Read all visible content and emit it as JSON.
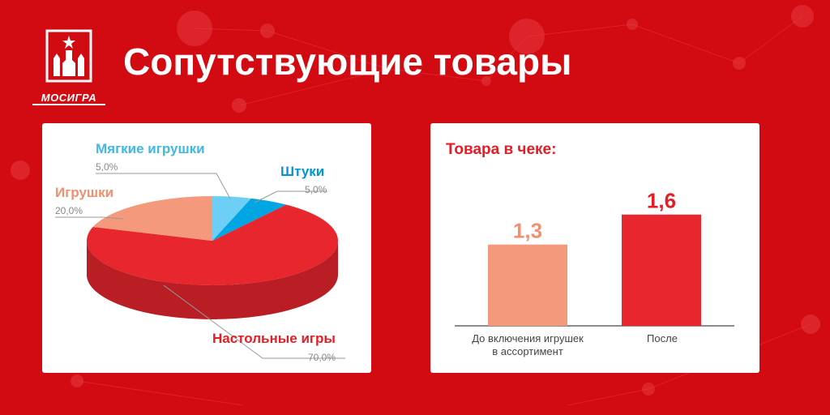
{
  "header": {
    "title": "Сопутствующие товары",
    "logo_text": "МОСИГРА"
  },
  "colors": {
    "background": "#d20a11",
    "accent": "#e31e24",
    "light_blue": "#6ecff6",
    "blue": "#00a5e3",
    "salmon": "#f4997b",
    "red": "#e8262e"
  },
  "chart_data": [
    {
      "type": "pie",
      "title": "",
      "slices": [
        {
          "label": "Мягкие игрушки",
          "value": 5.0,
          "value_label": "5,0%",
          "color": "#6ecff6"
        },
        {
          "label": "Штуки",
          "value": 5.0,
          "value_label": "5,0%",
          "color": "#00a5e3"
        },
        {
          "label": "Настольные игры",
          "value": 70.0,
          "value_label": "70,0%",
          "color": "#e8262e"
        },
        {
          "label": "Игрушки",
          "value": 20.0,
          "value_label": "20,0%",
          "color": "#f4997b"
        }
      ]
    },
    {
      "type": "bar",
      "title": "Товара в чеке:",
      "categories": [
        "До включения игрушек в ассортимент",
        "После"
      ],
      "category_lines": [
        [
          "До включения игрушек",
          "в ассортимент"
        ],
        [
          "После"
        ]
      ],
      "values": [
        1.3,
        1.6
      ],
      "value_labels": [
        "1,3",
        "1,6"
      ],
      "colors": [
        "#f4997b",
        "#e8262e"
      ],
      "ylim": [
        0,
        2.2
      ]
    }
  ]
}
